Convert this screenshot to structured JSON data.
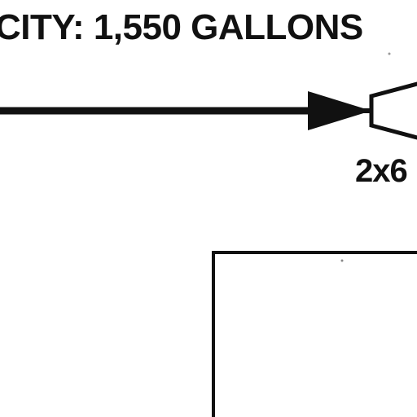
{
  "diagram": {
    "capacity_text": "CITY: 1,550 GALLONS",
    "fitting_size_text": "2x6",
    "colors": {
      "ink": "#111111",
      "background": "#ffffff"
    }
  }
}
